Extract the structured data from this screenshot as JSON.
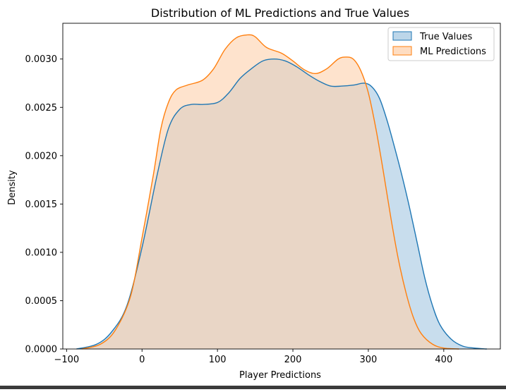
{
  "chart_data": {
    "type": "area",
    "title": "Distribution of ML Predictions and True Values",
    "xlabel": "Player Predictions",
    "ylabel": "Density",
    "xlim": [
      -105,
      475
    ],
    "ylim": [
      0,
      0.00337
    ],
    "xticks": [
      -100,
      0,
      100,
      200,
      300,
      400
    ],
    "xtick_labels": [
      "−100",
      "0",
      "100",
      "200",
      "300",
      "400"
    ],
    "yticks": [
      0,
      0.0005,
      0.001,
      0.0015,
      0.002,
      0.0025,
      0.003
    ],
    "ytick_labels": [
      "0.0000",
      "0.0005",
      "0.0010",
      "0.0015",
      "0.0020",
      "0.0025",
      "0.0030"
    ],
    "grid": false,
    "legend_position": "top-right",
    "series": [
      {
        "name": "True Values",
        "line_color": "#1f77b4",
        "fill_color": "#a6c8e2",
        "x": [
          -87,
          -60,
          -40,
          -20,
          0,
          20,
          35,
          50,
          65,
          80,
          100,
          115,
          130,
          145,
          160,
          175,
          190,
          205,
          220,
          235,
          250,
          265,
          280,
          295,
          305,
          315,
          325,
          335,
          345,
          355,
          365,
          375,
          385,
          395,
          410,
          425,
          440,
          457
        ],
        "y": [
          0.0,
          5e-05,
          0.00018,
          0.00045,
          0.00105,
          0.0018,
          0.00228,
          0.00248,
          0.00253,
          0.00253,
          0.00255,
          0.00265,
          0.0028,
          0.0029,
          0.00298,
          0.003,
          0.00298,
          0.00292,
          0.00284,
          0.00277,
          0.00272,
          0.00272,
          0.00273,
          0.00275,
          0.00271,
          0.00259,
          0.00236,
          0.00208,
          0.00178,
          0.00145,
          0.00109,
          0.00073,
          0.00045,
          0.00025,
          0.0001,
          3e-05,
          1e-05,
          0.0
        ]
      },
      {
        "name": "ML Predictions",
        "line_color": "#ff7f0e",
        "fill_color": "#fdd2ae",
        "x": [
          -80,
          -55,
          -35,
          -15,
          0,
          15,
          25,
          35,
          45,
          60,
          80,
          95,
          110,
          125,
          140,
          150,
          165,
          185,
          200,
          215,
          230,
          245,
          260,
          270,
          280,
          290,
          300,
          310,
          320,
          330,
          340,
          350,
          360,
          370,
          385,
          400,
          420
        ],
        "y": [
          0.0,
          5e-05,
          0.0002,
          0.00055,
          0.00115,
          0.0018,
          0.00228,
          0.00255,
          0.00268,
          0.00273,
          0.00278,
          0.0029,
          0.0031,
          0.00322,
          0.00325,
          0.00323,
          0.00312,
          0.00306,
          0.00298,
          0.00289,
          0.00285,
          0.0029,
          0.003,
          0.00302,
          0.003,
          0.00288,
          0.00265,
          0.00228,
          0.00183,
          0.00135,
          0.00092,
          0.00058,
          0.00032,
          0.00016,
          5e-05,
          1e-05,
          0.0
        ]
      }
    ]
  }
}
